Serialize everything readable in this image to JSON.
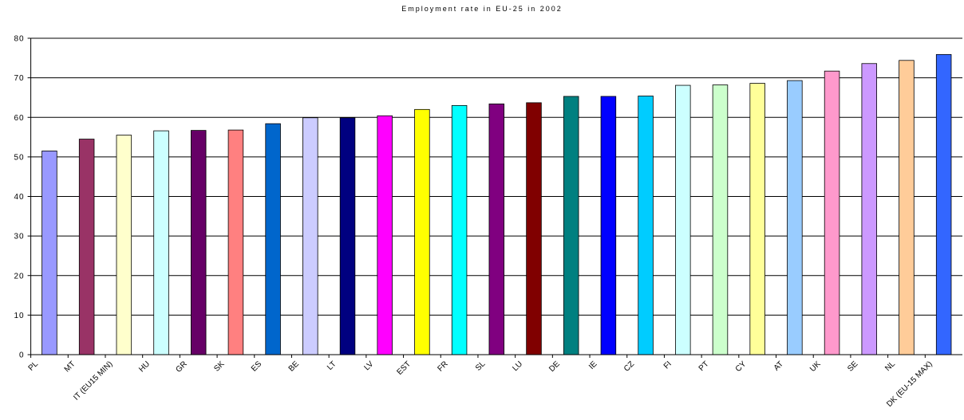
{
  "chart_data": {
    "type": "bar",
    "title": "Employment rate in EU-25 in 2002",
    "categories": [
      "PL",
      "MT",
      "IT (EU15 MIN)",
      "HU",
      "GR",
      "SK",
      "ES",
      "BE",
      "LT",
      "LV",
      "EST",
      "FR",
      "SL",
      "LU",
      "DE",
      "IE",
      "CZ",
      "FI",
      "PT",
      "CY",
      "AT",
      "UK",
      "SE",
      "NL",
      "DK (EU-15 MAX)"
    ],
    "values": [
      51.5,
      54.5,
      55.5,
      56.6,
      56.7,
      56.8,
      58.4,
      59.9,
      59.9,
      60.4,
      62.0,
      63.0,
      63.4,
      63.7,
      65.3,
      65.3,
      65.4,
      68.1,
      68.2,
      68.6,
      69.3,
      71.7,
      73.6,
      74.4,
      75.9
    ],
    "colors": [
      "#9999ff",
      "#993366",
      "#ffffcc",
      "#ccffff",
      "#660066",
      "#ff8080",
      "#0066cc",
      "#ccccff",
      "#000080",
      "#ff00ff",
      "#ffff00",
      "#00ffff",
      "#800080",
      "#800000",
      "#008080",
      "#0000ff",
      "#00ccff",
      "#ccffff",
      "#ccffcc",
      "#ffff99",
      "#99ccff",
      "#ff99cc",
      "#cc99ff",
      "#ffcc99",
      "#3366ff"
    ],
    "ylim": [
      0,
      80
    ],
    "yticks": [
      0,
      10,
      20,
      30,
      40,
      50,
      60,
      70,
      80
    ],
    "grid": true
  }
}
